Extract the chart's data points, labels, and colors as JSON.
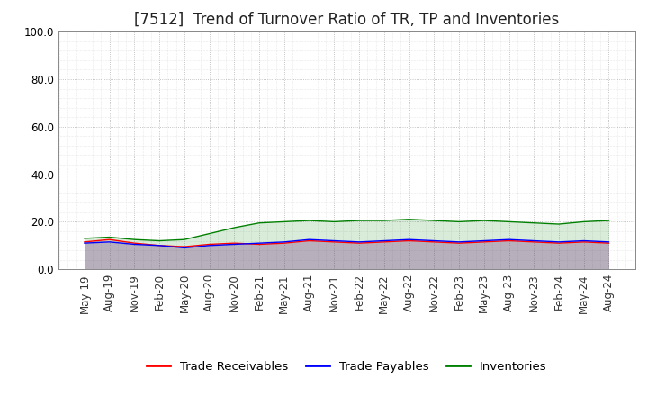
{
  "title": "[7512]  Trend of Turnover Ratio of TR, TP and Inventories",
  "ylim": [
    0,
    100
  ],
  "yticks": [
    0,
    20,
    40,
    60,
    80,
    100
  ],
  "legend_labels": [
    "Trade Receivables",
    "Trade Payables",
    "Inventories"
  ],
  "legend_colors": [
    "#ff0000",
    "#0000ff",
    "#008000"
  ],
  "background_color": "#ffffff",
  "grid_color": "#aaaaaa",
  "x_labels": [
    "May-19",
    "Aug-19",
    "Nov-19",
    "Feb-20",
    "May-20",
    "Aug-20",
    "Nov-20",
    "Feb-21",
    "May-21",
    "Aug-21",
    "Nov-21",
    "Feb-22",
    "May-22",
    "Aug-22",
    "Nov-22",
    "Feb-23",
    "May-23",
    "Aug-23",
    "Nov-23",
    "Feb-24",
    "May-24",
    "Aug-24"
  ],
  "trade_receivables": [
    11.5,
    12.5,
    11.0,
    10.0,
    9.5,
    10.5,
    11.0,
    10.5,
    11.0,
    12.0,
    11.5,
    11.0,
    11.5,
    12.0,
    11.5,
    11.0,
    11.5,
    12.0,
    11.5,
    11.0,
    11.5,
    11.0
  ],
  "trade_payables": [
    11.0,
    11.5,
    10.5,
    10.0,
    9.0,
    10.0,
    10.5,
    11.0,
    11.5,
    12.5,
    12.0,
    11.5,
    12.0,
    12.5,
    12.0,
    11.5,
    12.0,
    12.5,
    12.0,
    11.5,
    12.0,
    11.5
  ],
  "inventories": [
    13.0,
    13.5,
    12.5,
    12.0,
    12.5,
    15.0,
    17.5,
    19.5,
    20.0,
    20.5,
    20.0,
    20.5,
    20.5,
    21.0,
    20.5,
    20.0,
    20.5,
    20.0,
    19.5,
    19.0,
    20.0,
    20.5
  ],
  "title_fontsize": 12,
  "tick_fontsize": 8.5,
  "legend_fontsize": 9.5
}
